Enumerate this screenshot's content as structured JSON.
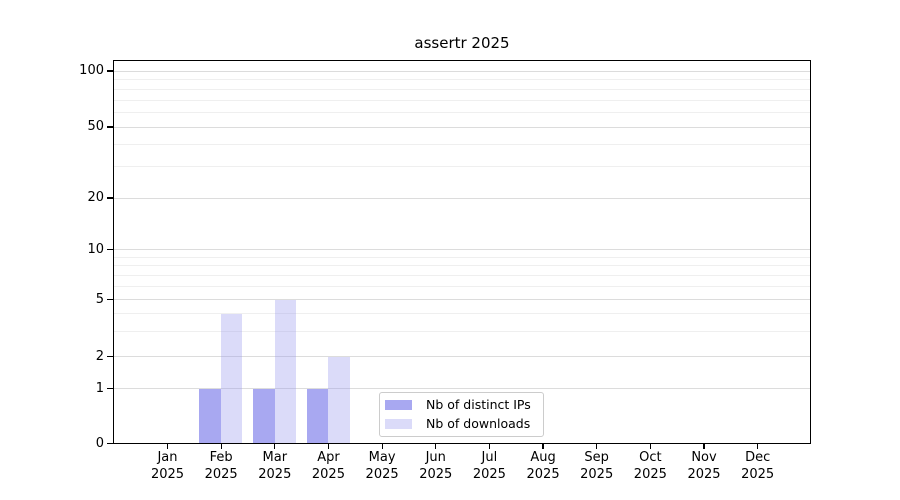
{
  "title": "assertr 2025",
  "chart_data": {
    "type": "bar",
    "title": "assertr 2025",
    "x_categories": [
      "Jan",
      "Feb",
      "Mar",
      "Apr",
      "May",
      "Jun",
      "Jul",
      "Aug",
      "Sep",
      "Oct",
      "Nov",
      "Dec"
    ],
    "x_year": "2025",
    "series": [
      {
        "name": "Nb of distinct IPs",
        "values": [
          0,
          1,
          1,
          1,
          0,
          0,
          0,
          0,
          0,
          0,
          0,
          0
        ]
      },
      {
        "name": "Nb of downloads",
        "values": [
          0,
          4,
          5,
          2,
          0,
          0,
          0,
          0,
          0,
          0,
          0,
          0
        ]
      }
    ],
    "y_axis": {
      "scale": "symlog",
      "ticks": [
        0,
        1,
        2,
        5,
        10,
        20,
        50,
        100
      ],
      "minor_gridlines": [
        3,
        4,
        6,
        7,
        8,
        9,
        30,
        40,
        60,
        70,
        80,
        90
      ],
      "range": [
        0,
        100
      ]
    },
    "grid": true,
    "legend_position": "lower-center-inside"
  },
  "colors": {
    "background": "#ffffff",
    "bar_base": "#9999ee",
    "distinct_ips_fill": "rgba(153,153,238,0.85)",
    "downloads_fill": "rgba(153,153,238,0.35)",
    "major_grid": "#dcdcdc",
    "minor_grid": "#efefef",
    "axis": "#000000",
    "legend_border": "#cccccc",
    "text": "#000000"
  }
}
